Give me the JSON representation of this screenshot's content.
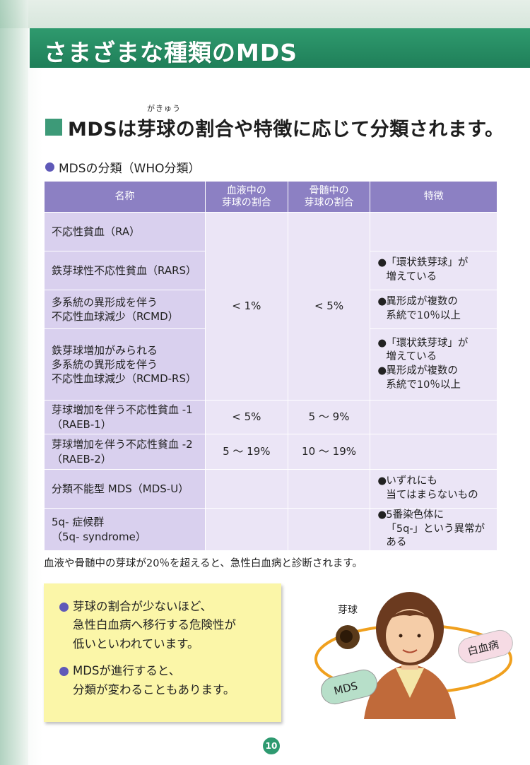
{
  "page_title": "さまざまな種類のMDS",
  "heading": {
    "text": "MDSは芽球の割合や特徴に応じて分類されます。",
    "ruby": "がきゅう"
  },
  "subheading": "MDSの分類（WHO分類）",
  "table": {
    "headers": [
      "名称",
      "血液中の\n芽球の割合",
      "骨髄中の\n芽球の割合",
      "特徴"
    ],
    "rows": [
      {
        "name": "不応性貧血（RA）",
        "features": []
      },
      {
        "name": "鉄芽球性不応性貧血（RARS）",
        "features": [
          "「環状鉄芽球」が\n増えている"
        ]
      },
      {
        "name": "多系統の異形成を伴う\n不応性血球減少（RCMD）",
        "features": [
          "異形成が複数の\n系統で10％以上"
        ]
      },
      {
        "name": "鉄芽球増加がみられる\n多系統の異形成を伴う\n不応性血球減少（RCMD-RS）",
        "features": [
          "「環状鉄芽球」が\n増えている",
          "異形成が複数の\n系統で10％以上"
        ]
      },
      {
        "name": "芽球増加を伴う不応性貧血 -1\n（RAEB-1）",
        "blood": "< 5%",
        "marrow": "5 ～ 9%",
        "features": []
      },
      {
        "name": "芽球増加を伴う不応性貧血 -2\n（RAEB-2）",
        "blood": "5 ～ 19%",
        "marrow": "10 ～ 19%",
        "features": []
      },
      {
        "name": "分類不能型 MDS（MDS-U）",
        "features": [
          "いずれにも\n当てはまらないもの"
        ]
      },
      {
        "name": "5q- 症候群\n（5q- syndrome）",
        "features": [
          "5番染色体に\n「5q-」という異常がある"
        ]
      }
    ],
    "merged_blood": "< 1%",
    "merged_marrow": "< 5%"
  },
  "footnote": "血液や骨髄中の芽球が20％を超えると、急性白血病と診断されます。",
  "notes": [
    "芽球の割合が少ないほど、\n急性白血病へ移行する危険性が\n低いといわれています。",
    "MDSが進行すると、\n分類が変わることもあります。"
  ],
  "illustration": {
    "blast_label": "芽球",
    "leukemia_label": "白血病",
    "mds_label": "MDS"
  },
  "page_number": "10",
  "colors": {
    "title_bar": "#2f9a6e",
    "table_header": "#8c80c3",
    "table_name": "#d9d0ee",
    "table_cell": "#ebe5f6",
    "note_bg": "#fbf6a8",
    "bullet": "#5f59b8"
  }
}
